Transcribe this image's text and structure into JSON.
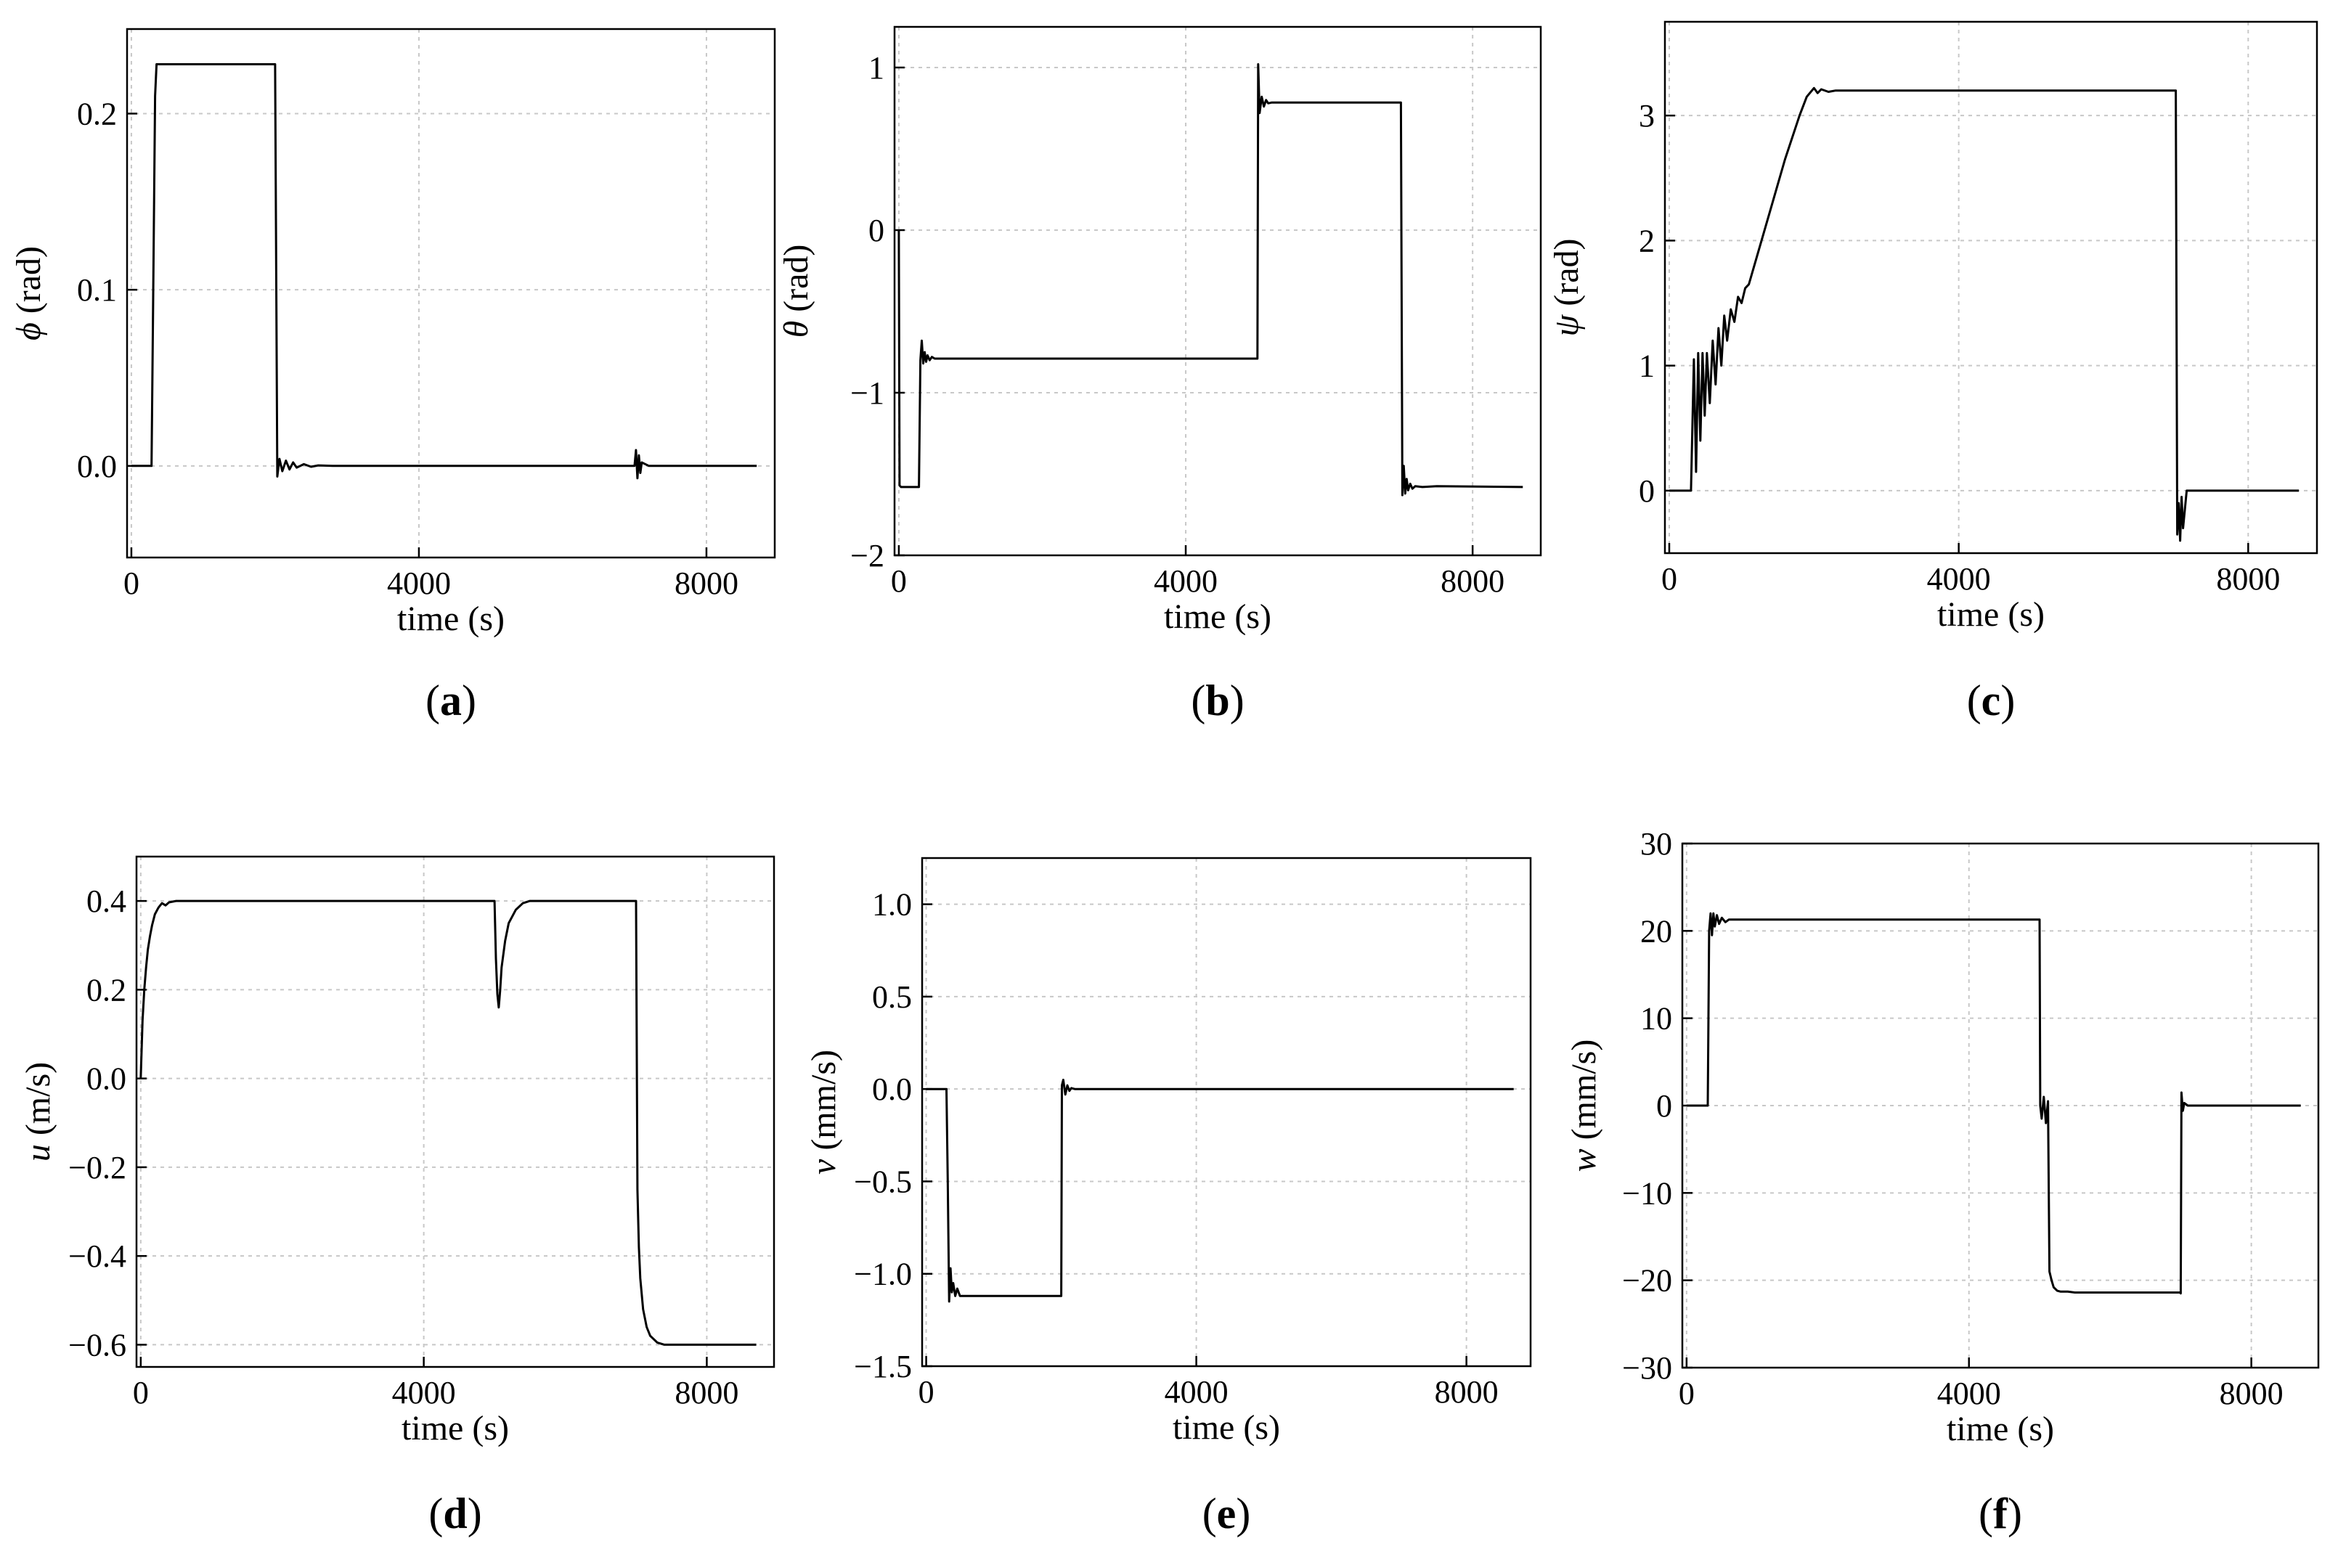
{
  "chart_data": [
    {
      "panel": "a",
      "type": "line",
      "caption": "a",
      "ylabel_symbol": "ϕ",
      "ylabel_unit": "(rad)",
      "xlabel": "time (s)",
      "xlim": [
        -60,
        8950
      ],
      "ylim": [
        -0.052,
        0.248
      ],
      "xticks": [
        0,
        4000,
        8000
      ],
      "xtick_labels": [
        "0",
        "4000",
        "8000"
      ],
      "yticks": [
        0.0,
        0.1,
        0.2
      ],
      "ytick_labels": [
        "0.0",
        "0.1",
        "0.2"
      ],
      "grid": true,
      "x": [
        0,
        280,
        300,
        330,
        350,
        1980,
        2000,
        2030,
        2060,
        2100,
        2150,
        2200,
        2250,
        2300,
        2400,
        2500,
        2600,
        2800,
        3200,
        7000,
        7020,
        7040,
        7060,
        7080,
        7100,
        7200,
        8700
      ],
      "y": [
        0,
        0,
        0.08,
        0.21,
        0.228,
        0.228,
        0.228,
        -0.006,
        0.004,
        -0.003,
        0.003,
        -0.002,
        0.002,
        -0.001,
        0.001,
        -0.0005,
        0.0003,
        0,
        0,
        0,
        0.009,
        -0.007,
        0.006,
        -0.004,
        0.002,
        0,
        0
      ]
    },
    {
      "panel": "b",
      "type": "line",
      "caption": "b",
      "ylabel_symbol": "θ",
      "ylabel_unit": "(rad)",
      "xlabel": "time (s)",
      "xlim": [
        -60,
        8950
      ],
      "ylim": [
        -2.0,
        1.25
      ],
      "xticks": [
        0,
        4000,
        8000
      ],
      "xtick_labels": [
        "0",
        "4000",
        "8000"
      ],
      "yticks": [
        -2,
        -1,
        0,
        1
      ],
      "ytick_labels": [
        "−2",
        "−1",
        "0",
        "1"
      ],
      "grid": true,
      "x": [
        0,
        10,
        30,
        280,
        300,
        320,
        340,
        360,
        380,
        400,
        430,
        460,
        500,
        600,
        5000,
        5010,
        5030,
        5060,
        5090,
        5120,
        5150,
        5200,
        7000,
        7020,
        7040,
        7060,
        7080,
        7100,
        7130,
        7160,
        7200,
        7300,
        7500,
        8700
      ],
      "y": [
        0,
        -1.57,
        -1.58,
        -1.58,
        -0.8,
        -0.68,
        -0.82,
        -0.75,
        -0.81,
        -0.77,
        -0.8,
        -0.78,
        -0.79,
        -0.79,
        -0.79,
        1.02,
        0.72,
        0.82,
        0.76,
        0.8,
        0.78,
        0.785,
        0.785,
        -1.63,
        -1.45,
        -1.62,
        -1.53,
        -1.6,
        -1.56,
        -1.59,
        -1.575,
        -1.58,
        -1.575,
        -1.58
      ]
    },
    {
      "panel": "c",
      "type": "line",
      "caption": "c",
      "ylabel_symbol": "ψ",
      "ylabel_unit": "(rad)",
      "xlabel": "time (s)",
      "xlim": [
        -60,
        8950
      ],
      "ylim": [
        -0.5,
        3.75
      ],
      "xticks": [
        0,
        4000,
        8000
      ],
      "xtick_labels": [
        "0",
        "4000",
        "8000"
      ],
      "yticks": [
        0,
        1,
        2,
        3
      ],
      "ytick_labels": [
        "0",
        "1",
        "2",
        "3"
      ],
      "grid": true,
      "x": [
        0,
        300,
        340,
        370,
        400,
        430,
        460,
        490,
        520,
        560,
        600,
        640,
        680,
        720,
        760,
        800,
        850,
        900,
        950,
        1000,
        1050,
        1100,
        1200,
        1400,
        1600,
        1800,
        1900,
        2000,
        2050,
        2100,
        2200,
        2300,
        2400,
        7000,
        7020,
        7040,
        7060,
        7080,
        7100,
        7150,
        8700
      ],
      "y": [
        0,
        0,
        1.05,
        0.15,
        1.1,
        0.4,
        1.1,
        0.6,
        1.1,
        0.7,
        1.2,
        0.85,
        1.3,
        1.0,
        1.4,
        1.2,
        1.45,
        1.35,
        1.55,
        1.5,
        1.62,
        1.65,
        1.85,
        2.25,
        2.65,
        3.0,
        3.15,
        3.22,
        3.18,
        3.21,
        3.19,
        3.2,
        3.2,
        3.2,
        -0.35,
        -0.1,
        -0.4,
        -0.05,
        -0.3,
        0,
        0
      ]
    },
    {
      "panel": "d",
      "type": "line",
      "caption": "d",
      "ylabel_symbol": "u",
      "ylabel_unit": "(m/s)",
      "xlabel": "time (s)",
      "xlim": [
        -60,
        8950
      ],
      "ylim": [
        -0.65,
        0.5
      ],
      "xticks": [
        0,
        4000,
        8000
      ],
      "xtick_labels": [
        "0",
        "4000",
        "8000"
      ],
      "yticks": [
        -0.6,
        -0.4,
        -0.2,
        0.0,
        0.2,
        0.4
      ],
      "ytick_labels": [
        "−0.6",
        "−0.4",
        "−0.2",
        "0.0",
        "0.2",
        "0.4"
      ],
      "grid": true,
      "x": [
        0,
        25,
        50,
        75,
        100,
        130,
        160,
        200,
        250,
        300,
        350,
        400,
        500,
        600,
        5000,
        5020,
        5040,
        5060,
        5080,
        5100,
        5150,
        5200,
        5300,
        5400,
        5500,
        5600,
        7000,
        7020,
        7040,
        7060,
        7100,
        7150,
        7200,
        7300,
        7400,
        7500,
        8700
      ],
      "y": [
        0,
        0.13,
        0.2,
        0.25,
        0.29,
        0.32,
        0.345,
        0.37,
        0.385,
        0.395,
        0.39,
        0.397,
        0.4,
        0.4,
        0.4,
        0.27,
        0.19,
        0.16,
        0.2,
        0.25,
        0.31,
        0.35,
        0.38,
        0.395,
        0.4,
        0.4,
        0.4,
        -0.25,
        -0.38,
        -0.45,
        -0.52,
        -0.56,
        -0.58,
        -0.595,
        -0.6,
        -0.6,
        -0.6
      ]
    },
    {
      "panel": "e",
      "type": "line",
      "caption": "e",
      "ylabel_symbol": "v",
      "ylabel_unit": "(mm/s)",
      "xlabel": "time (s)",
      "xlim": [
        -60,
        8950
      ],
      "ylim": [
        -1.5,
        1.25
      ],
      "xticks": [
        0,
        4000,
        8000
      ],
      "xtick_labels": [
        "0",
        "4000",
        "8000"
      ],
      "yticks": [
        -1.5,
        -1.0,
        -0.5,
        0.0,
        0.5,
        1.0
      ],
      "ytick_labels": [
        "−1.5",
        "−1.0",
        "−0.5",
        "0.0",
        "0.5",
        "1.0"
      ],
      "grid": true,
      "x": [
        0,
        300,
        320,
        340,
        360,
        380,
        400,
        430,
        460,
        500,
        550,
        2000,
        2010,
        2030,
        2060,
        2090,
        2120,
        2150,
        2200,
        8700
      ],
      "y": [
        0,
        0,
        -0.5,
        -1.15,
        -0.97,
        -1.1,
        -1.05,
        -1.12,
        -1.08,
        -1.12,
        -1.12,
        -1.12,
        0.02,
        0.05,
        -0.03,
        0.02,
        -0.01,
        0.005,
        0,
        0
      ]
    },
    {
      "panel": "f",
      "type": "line",
      "caption": "f",
      "ylabel_symbol": "w",
      "ylabel_unit": "(mm/s)",
      "xlabel": "time (s)",
      "xlim": [
        -60,
        8950
      ],
      "ylim": [
        -30,
        30
      ],
      "xticks": [
        0,
        4000,
        8000
      ],
      "xtick_labels": [
        "0",
        "4000",
        "8000"
      ],
      "yticks": [
        -30,
        -20,
        -10,
        0,
        10,
        20,
        30
      ],
      "ytick_labels": [
        "−30",
        "−20",
        "−10",
        "0",
        "10",
        "20",
        "30"
      ],
      "grid": true,
      "x": [
        0,
        300,
        320,
        340,
        360,
        380,
        400,
        430,
        460,
        500,
        550,
        600,
        700,
        5000,
        5010,
        5030,
        5060,
        5090,
        5120,
        5140,
        5170,
        5200,
        5250,
        5300,
        5400,
        5500,
        6990,
        7000,
        7010,
        7030,
        7050,
        7100,
        8700
      ],
      "y": [
        0,
        0,
        20,
        22,
        19.5,
        22,
        20.5,
        21.8,
        20.8,
        21.5,
        21,
        21.3,
        21.3,
        21.3,
        0,
        -1.5,
        1,
        -2,
        0.5,
        -19,
        -20,
        -20.8,
        -21.2,
        -21.3,
        -21.3,
        -21.4,
        -21.4,
        -21.5,
        1.5,
        -0.6,
        0.3,
        0,
        0
      ]
    }
  ]
}
